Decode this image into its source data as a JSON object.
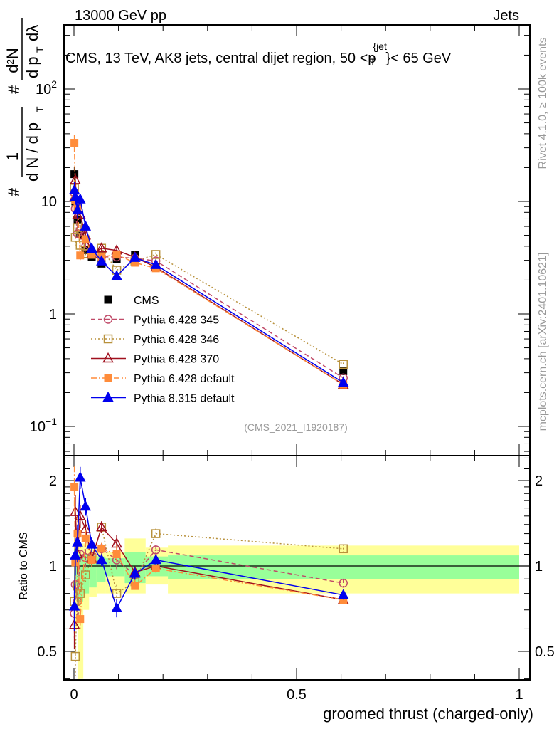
{
  "header": {
    "left": "13000 GeV pp",
    "right": "Jets"
  },
  "side": {
    "rivet": "Rivet 4.1.0, ≥ 100k events",
    "mcplots": "mcplots.cern.ch [arXiv:2401.10621]"
  },
  "watermark": "(CMS_2021_I1920187)",
  "chart_data": {
    "type": "line",
    "title": "CMS, 13 TeV, AK8 jets, central dijet region, 50 <p_T^{jet}< 65 GeV",
    "title_main": "CMS, 13 TeV, AK8 jets, central dijet region, 50 <p",
    "title_sup": "{jet",
    "title_sub": "T",
    "title_end": "}< 65 GeV",
    "xlabel": "groomed thrust (charged-only)",
    "ylabel": "1/(dN/dp_T) d²N/(dp_T dλ)",
    "ylabel_parts": {
      "hash": "#",
      "one": "1",
      "den1": "d N / d p",
      "T": "T",
      "num2": "d²N",
      "den2": "d p",
      "dl": "dλ"
    },
    "ratio_ylabel": "Ratio to CMS",
    "xlim": [
      -0.02,
      1.02
    ],
    "ylim": [
      0.0566,
      371
    ],
    "yscale": "log",
    "ratio_ylim": [
      0.4,
      2.45
    ],
    "xticks": [
      {
        "v": 0,
        "label": "0"
      },
      {
        "v": 0.5,
        "label": "0.5"
      },
      {
        "v": 1,
        "label": "1"
      }
    ],
    "yticks": [
      {
        "v": 0.1,
        "base": "10",
        "exp": "−1"
      },
      {
        "v": 1,
        "base": "1",
        "exp": ""
      },
      {
        "v": 10,
        "base": "10",
        "exp": ""
      },
      {
        "v": 100,
        "base": "10",
        "exp": "2"
      }
    ],
    "ratio_yticks": [
      {
        "v": 0.5,
        "label": "0.5"
      },
      {
        "v": 1,
        "label": "1"
      },
      {
        "v": 2,
        "label": "2"
      }
    ],
    "legend_position": "center-left",
    "x": [
      0.001,
      0.003,
      0.008,
      0.014,
      0.026,
      0.04,
      0.062,
      0.096,
      0.137,
      0.184,
      0.605
    ],
    "cms": {
      "name": "CMS",
      "color": "#000000",
      "values": [
        17.5,
        10.0,
        6.9,
        5.1,
        3.7,
        3.2,
        2.8,
        3.06,
        3.36,
        2.6,
        0.31
      ]
    },
    "rel_err": [
      0.3,
      0.25,
      0.25,
      0.15,
      0.12,
      0.1,
      0.08,
      0.12,
      0.08,
      0.07,
      0.06
    ],
    "series": [
      {
        "name": "Pythia 6.428 345",
        "color": "#c04a68",
        "marker": "open-circle",
        "dash": "6,4",
        "ratio": [
          0.68,
          0.86,
          0.75,
          1.1,
          1.07,
          1.08,
          1.15,
          1.05,
          0.93,
          1.14,
          0.87
        ]
      },
      {
        "name": "Pythia 6.428 346",
        "color": "#b8913c",
        "marker": "open-square",
        "dash": "2,3",
        "ratio": [
          0.75,
          0.48,
          0.85,
          0.8,
          0.93,
          1.06,
          1.37,
          0.8,
          0.88,
          1.3,
          1.15
        ]
      },
      {
        "name": "Pythia 6.428 370",
        "color": "#a0101e",
        "marker": "open-triangle",
        "dash": "",
        "ratio": [
          0.62,
          1.55,
          1.1,
          1.5,
          1.35,
          1.06,
          1.37,
          1.2,
          0.95,
          1.0,
          0.76
        ]
      },
      {
        "name": "Pythia 6.428 default",
        "color": "#ff8c3a",
        "marker": "filled-square",
        "dash": "8,3,2,3",
        "ratio": [
          1.9,
          1.03,
          1.3,
          0.65,
          1.25,
          1.05,
          1.15,
          1.1,
          0.85,
          0.98,
          0.76
        ]
      },
      {
        "name": "Pythia 8.315 default",
        "color": "#0000ee",
        "marker": "filled-triangle",
        "dash": "",
        "ratio": [
          0.72,
          1.09,
          1.21,
          2.05,
          1.62,
          1.19,
          1.05,
          0.71,
          0.94,
          1.05,
          0.79
        ]
      }
    ],
    "bands": {
      "inner_color": "#99ff99",
      "outer_color": "#ffff99",
      "bins": [
        {
          "lo": 0.0,
          "hi": 0.004,
          "g": [
            0.8,
            1.15
          ],
          "y": [
            0.6,
            1.3
          ]
        },
        {
          "lo": 0.004,
          "hi": 0.008,
          "g": [
            0.85,
            1.1
          ],
          "y": [
            0.6,
            1.2
          ]
        },
        {
          "lo": 0.008,
          "hi": 0.013,
          "g": [
            0.75,
            1.1
          ],
          "y": [
            0.35,
            1.2
          ]
        },
        {
          "lo": 0.013,
          "hi": 0.021,
          "g": [
            0.75,
            1.1
          ],
          "y": [
            0.4,
            1.2
          ]
        },
        {
          "lo": 0.021,
          "hi": 0.034,
          "g": [
            0.8,
            1.1
          ],
          "y": [
            0.7,
            1.2
          ]
        },
        {
          "lo": 0.034,
          "hi": 0.051,
          "g": [
            0.84,
            1.1
          ],
          "y": [
            0.78,
            1.15
          ]
        },
        {
          "lo": 0.051,
          "hi": 0.071,
          "g": [
            0.88,
            1.08
          ],
          "y": [
            0.8,
            1.15
          ]
        },
        {
          "lo": 0.071,
          "hi": 0.114,
          "g": [
            0.92,
            1.065
          ],
          "y": [
            0.8,
            1.12
          ]
        },
        {
          "lo": 0.114,
          "hi": 0.161,
          "g": [
            0.87,
            1.12
          ],
          "y": [
            0.8,
            1.25
          ]
        },
        {
          "lo": 0.161,
          "hi": 0.211,
          "g": [
            0.92,
            1.08
          ],
          "y": [
            0.86,
            1.16
          ]
        },
        {
          "lo": 0.211,
          "hi": 1.0,
          "g": [
            0.9,
            1.09
          ],
          "y": [
            0.8,
            1.18
          ]
        }
      ]
    }
  }
}
